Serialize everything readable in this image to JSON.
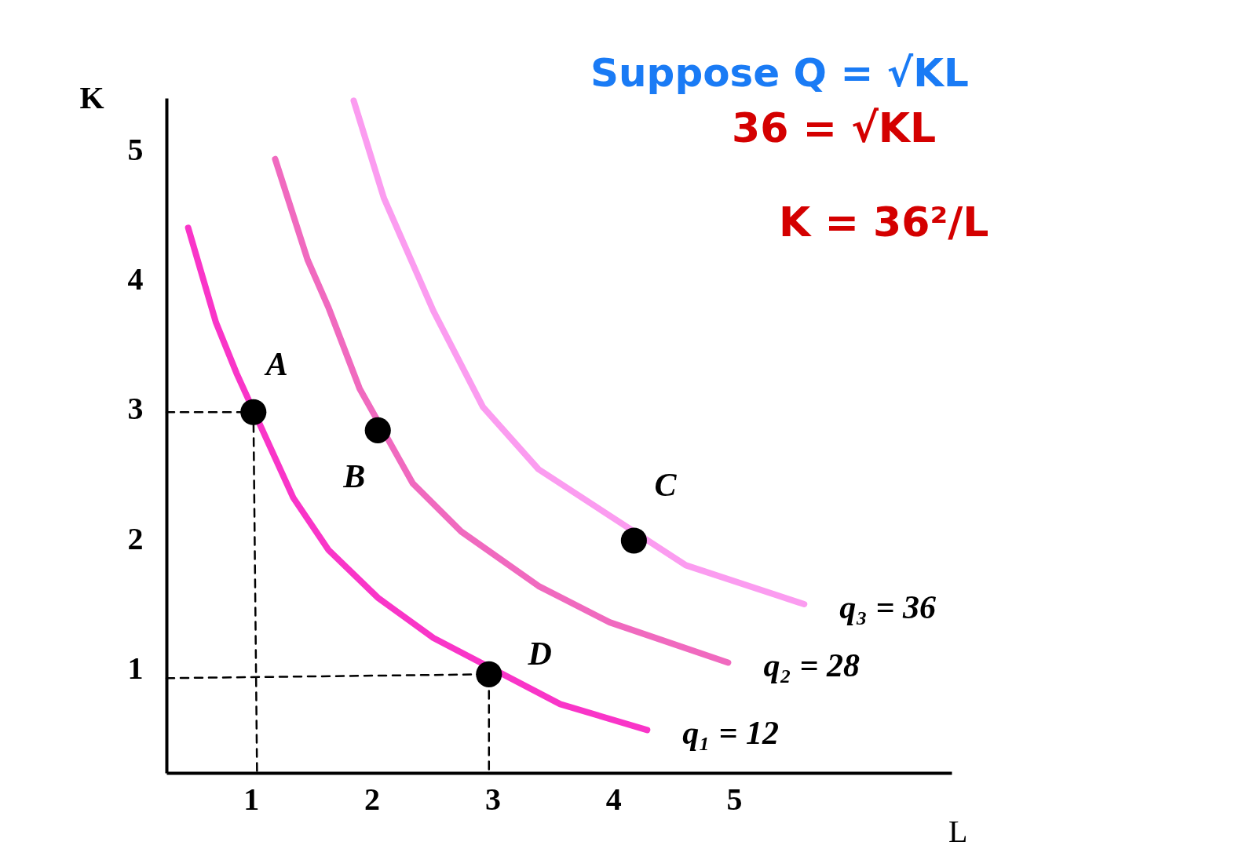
{
  "chart_data": {
    "type": "line",
    "xlabel": "L",
    "ylabel": "K",
    "xlim": [
      0.3,
      6.8
    ],
    "ylim": [
      0.2,
      5.4
    ],
    "xticks": [
      1,
      2,
      3,
      4,
      5
    ],
    "yticks": [
      1,
      2,
      3,
      4,
      5
    ],
    "grid": false,
    "marker": "none",
    "series": [
      {
        "name": "q₁ = 12",
        "color": "#f935c8",
        "x": [
          0.48,
          0.71,
          0.88,
          1.35,
          1.64,
          2.05,
          2.51,
          3.56,
          4.28
        ],
        "values": [
          4.4,
          3.67,
          3.28,
          2.32,
          1.92,
          1.55,
          1.24,
          0.73,
          0.53
        ]
      },
      {
        "name": "q₂ = 28",
        "color": "#f06abf",
        "x": [
          1.2,
          1.47,
          1.64,
          1.9,
          2.34,
          2.74,
          3.38,
          3.97,
          4.95
        ],
        "values": [
          4.93,
          4.15,
          3.79,
          3.16,
          2.43,
          2.06,
          1.64,
          1.36,
          1.05
        ]
      },
      {
        "name": "q₃ = 36",
        "color": "#fb9cf0",
        "x": [
          1.85,
          2.1,
          2.51,
          2.92,
          3.38,
          4.6,
          5.58
        ],
        "values": [
          5.38,
          4.63,
          3.76,
          3.02,
          2.54,
          1.8,
          1.5
        ]
      },
      {
        "color": "#000000",
        "line_style": "dashed",
        "x": [
          0.3,
          1.02,
          1.05
        ],
        "values": [
          2.98,
          2.98,
          0.2
        ]
      },
      {
        "color": "#000000",
        "line_style": "dashed",
        "x": [
          0.3,
          2.97,
          2.97
        ],
        "values": [
          0.93,
          0.96,
          0.2
        ]
      },
      {
        "type": "scatter",
        "marker": "circle",
        "color": "#000000",
        "x": [
          1.02,
          2.05,
          4.17,
          2.97
        ],
        "values": [
          2.98,
          2.84,
          1.99,
          0.96
        ]
      }
    ],
    "annotations": [
      {
        "text": "A",
        "x": 1.02,
        "y": 2.98
      },
      {
        "text": "B",
        "x": 2.05,
        "y": 2.84
      },
      {
        "text": "C",
        "x": 4.17,
        "y": 1.99
      },
      {
        "text": "D",
        "x": 2.97,
        "y": 0.96
      },
      "Suppose Q = √KL",
      "36 = √KL",
      "K = 36²/L"
    ]
  }
}
